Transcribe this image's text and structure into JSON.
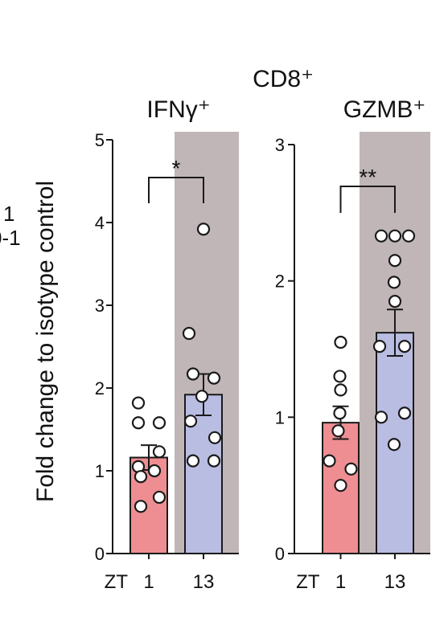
{
  "figure": {
    "group_title": "CD8⁺",
    "y_axis_label": "Fold change to isotype control",
    "x_axis_prefix": "ZT",
    "cropped_left_text": [
      "1",
      "0-1"
    ]
  },
  "colors": {
    "bar_zt1": "#ee8e92",
    "bar_zt13": "#b9bde2",
    "shade": "#c1b6b7",
    "point_fill": "#ffffff",
    "stroke": "#1a1a1a"
  },
  "chart_data": [
    {
      "type": "bar",
      "title": "IFNγ⁺",
      "categories": [
        "1",
        "13"
      ],
      "values": [
        1.16,
        1.92
      ],
      "errors": [
        0.15,
        0.25
      ],
      "points": [
        [
          1.82,
          1.58,
          1.58,
          1.23,
          1.05,
          1.0,
          0.93,
          0.68,
          0.57
        ],
        [
          3.92,
          2.66,
          2.17,
          2.12,
          1.9,
          1.6,
          1.4,
          1.12,
          1.12
        ]
      ],
      "significance": "*",
      "ylim": [
        0,
        5
      ],
      "yticks": [
        0,
        1,
        2,
        3,
        4,
        5
      ],
      "shaded_category": "13",
      "ylabel": "Fold change to isotype control"
    },
    {
      "type": "bar",
      "title": "GZMB⁺",
      "categories": [
        "1",
        "13"
      ],
      "values": [
        0.96,
        1.62
      ],
      "errors": [
        0.12,
        0.17
      ],
      "points": [
        [
          1.55,
          1.3,
          1.2,
          1.03,
          0.9,
          0.68,
          0.62,
          0.5
        ],
        [
          2.33,
          2.33,
          2.33,
          2.15,
          1.99,
          1.85,
          1.52,
          1.52,
          1.03,
          1.0,
          0.8
        ]
      ],
      "significance": "**",
      "ylim": [
        0,
        3
      ],
      "yticks": [
        0,
        1,
        2,
        3
      ],
      "shaded_category": "13",
      "ylabel": ""
    }
  ]
}
